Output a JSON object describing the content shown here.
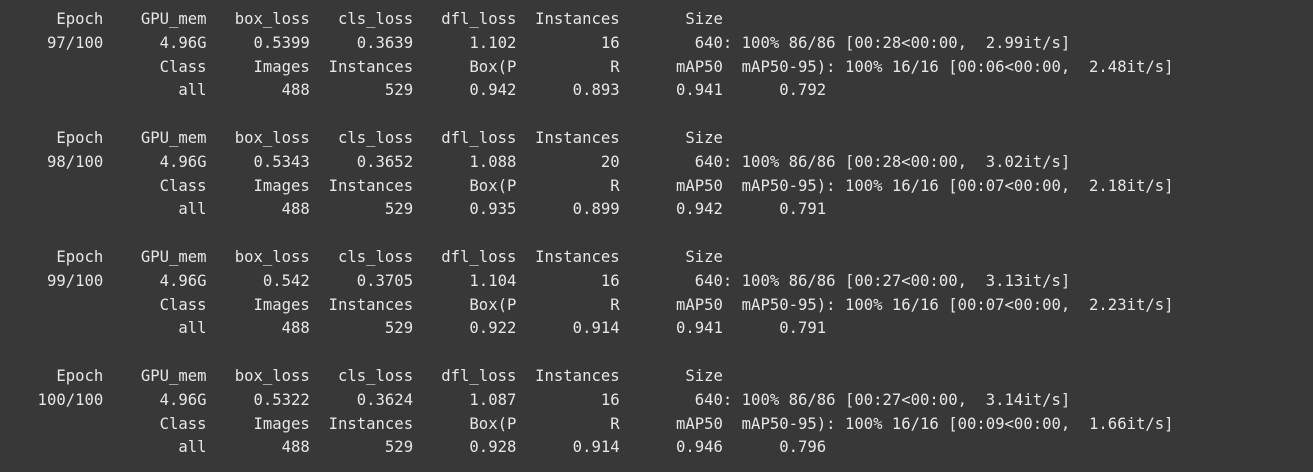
{
  "output": {
    "lines": [
      "      Epoch    GPU_mem   box_loss   cls_loss   dfl_loss  Instances       Size",
      "     97/100      4.96G     0.5399     0.3639      1.102         16        640: 100% 86/86 [00:28<00:00,  2.99it/s]",
      "                 Class     Images  Instances      Box(P          R      mAP50  mAP50-95): 100% 16/16 [00:06<00:00,  2.48it/s]",
      "                   all        488        529      0.942      0.893      0.941      0.792",
      "",
      "      Epoch    GPU_mem   box_loss   cls_loss   dfl_loss  Instances       Size",
      "     98/100      4.96G     0.5343     0.3652      1.088         20        640: 100% 86/86 [00:28<00:00,  3.02it/s]",
      "                 Class     Images  Instances      Box(P          R      mAP50  mAP50-95): 100% 16/16 [00:07<00:00,  2.18it/s]",
      "                   all        488        529      0.935      0.899      0.942      0.791",
      "",
      "      Epoch    GPU_mem   box_loss   cls_loss   dfl_loss  Instances       Size",
      "     99/100      4.96G      0.542     0.3705      1.104         16        640: 100% 86/86 [00:27<00:00,  3.13it/s]",
      "                 Class     Images  Instances      Box(P          R      mAP50  mAP50-95): 100% 16/16 [00:07<00:00,  2.23it/s]",
      "                   all        488        529      0.922      0.914      0.941      0.791",
      "",
      "      Epoch    GPU_mem   box_loss   cls_loss   dfl_loss  Instances       Size",
      "    100/100      4.96G     0.5322     0.3624      1.087         16        640: 100% 86/86 [00:27<00:00,  3.14it/s]",
      "                 Class     Images  Instances      Box(P          R      mAP50  mAP50-95): 100% 16/16 [00:09<00:00,  1.66it/s]",
      "                   all        488        529      0.928      0.914      0.946      0.796"
    ]
  }
}
